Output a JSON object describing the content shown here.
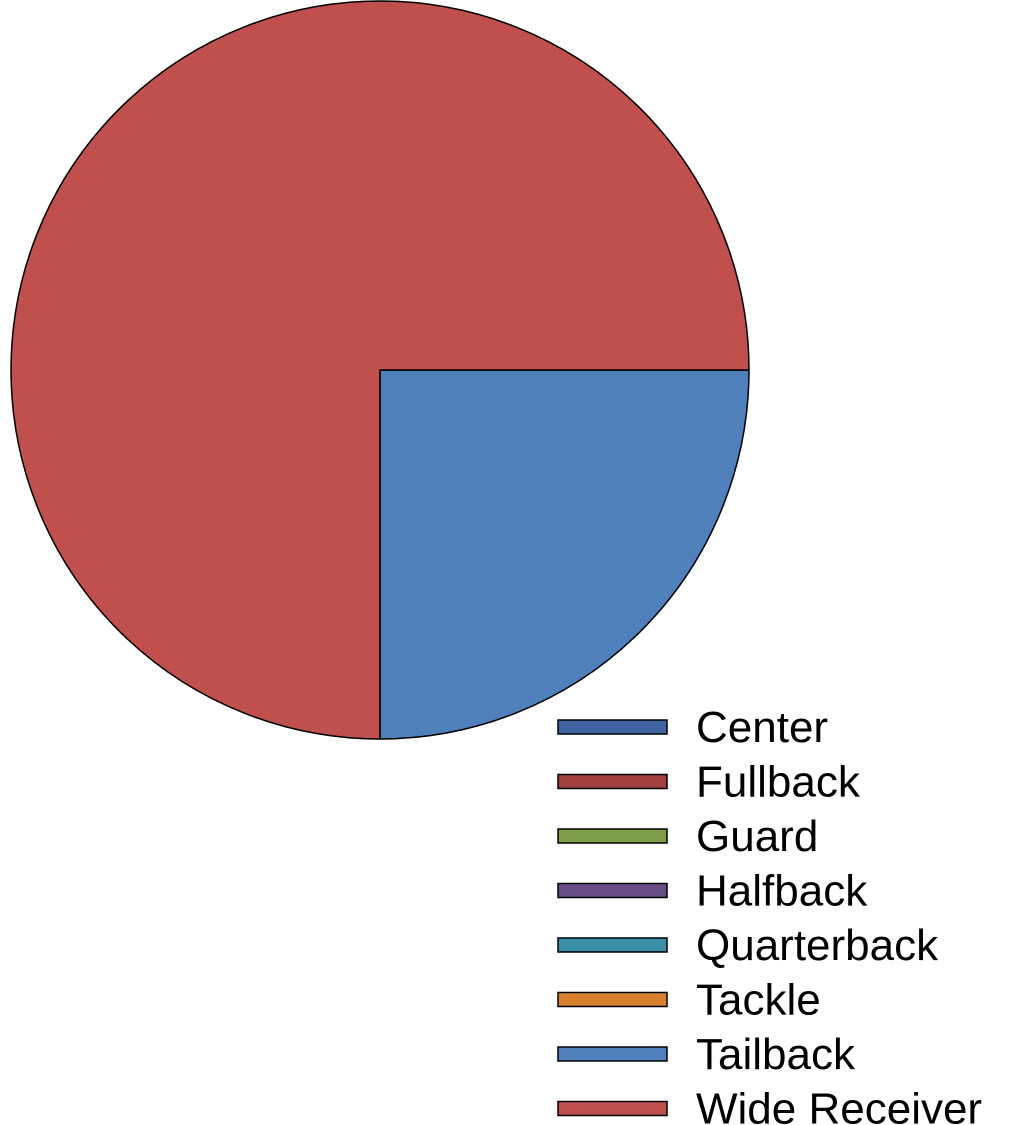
{
  "chart_data": {
    "type": "pie",
    "title": "",
    "categories": [
      "Center",
      "Fullback",
      "Guard",
      "Halfback",
      "Quarterback",
      "Tackle",
      "Tailback",
      "Wide Receiver"
    ],
    "values": [
      0,
      0,
      0,
      0,
      0,
      0,
      25,
      75
    ],
    "colors": [
      "#4064a0",
      "#a33f3f",
      "#7f9c48",
      "#674d88",
      "#3c8fa8",
      "#d98131",
      "#4f80bc",
      "#c0504d"
    ],
    "start_angle_deg": 0,
    "direction": "clockwise",
    "legend_position": "bottom-right"
  }
}
